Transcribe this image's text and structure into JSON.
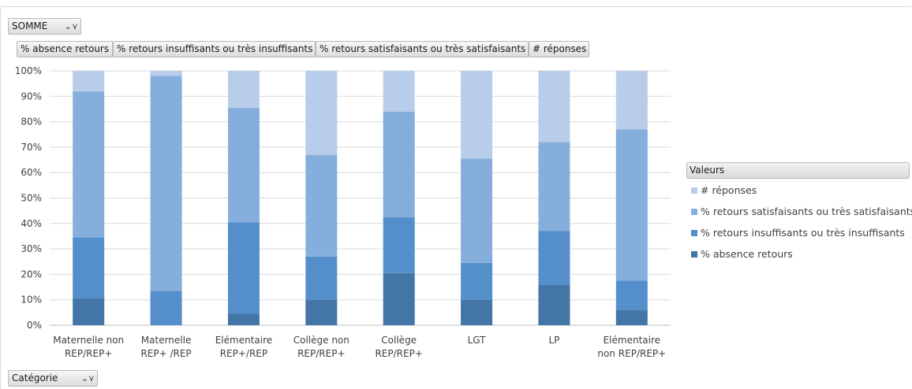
{
  "filters": {
    "value_field": "SOMME",
    "row_field": "Catégorie"
  },
  "series_buttons": [
    "% absence retours",
    "% retours insuffisants ou très insuffisants",
    "% retours satisfaisants ou très satisfaisants",
    "# réponses"
  ],
  "legend": {
    "title": "Valeurs",
    "items": [
      {
        "label": "# réponses",
        "color": "#b7cde9"
      },
      {
        "label": "% retours satisfaisants ou très satisfaisants",
        "color": "#86aedc"
      },
      {
        "label": "% retours insuffisants ou très insuffisants",
        "color": "#558fcb"
      },
      {
        "label": "% absence retours",
        "color": "#4375a6"
      }
    ]
  },
  "icons": {
    "filter": "filter-dropdown-icon"
  },
  "chart_data": {
    "type": "bar",
    "stacked": true,
    "normalized": true,
    "categories": [
      [
        "Maternelle non",
        "REP/REP+"
      ],
      [
        "Maternelle",
        "REP+ /REP"
      ],
      [
        "Elémentaire",
        "REP+/REP"
      ],
      [
        "Collège non",
        "REP/REP+"
      ],
      [
        "Collège",
        "REP/REP+"
      ],
      [
        "LGT"
      ],
      [
        "LP"
      ],
      [
        "Elémentaire",
        "non REP/REP+"
      ]
    ],
    "y_ticks": [
      "0%",
      "10%",
      "20%",
      "30%",
      "40%",
      "50%",
      "60%",
      "70%",
      "80%",
      "90%",
      "100%"
    ],
    "ylim": [
      0,
      100
    ],
    "grid": true,
    "legend_position": "right",
    "series": [
      {
        "name": "% absence retours",
        "color": "#4375a6",
        "values": [
          10.5,
          0,
          4.5,
          10,
          20.5,
          10,
          16,
          6
        ]
      },
      {
        "name": "% retours insuffisants ou très insuffisants",
        "color": "#558fcb",
        "values": [
          24,
          13.5,
          36,
          17,
          22,
          14.5,
          21,
          11.5
        ]
      },
      {
        "name": "% retours satisfaisants ou très satisfaisants",
        "color": "#86aedc",
        "values": [
          57.5,
          84.5,
          45,
          40,
          41.5,
          41,
          35,
          59.5
        ]
      },
      {
        "name": "# réponses",
        "color": "#b7cde9",
        "values": [
          8,
          2,
          14.5,
          33,
          16,
          34.5,
          28,
          23
        ]
      }
    ]
  }
}
